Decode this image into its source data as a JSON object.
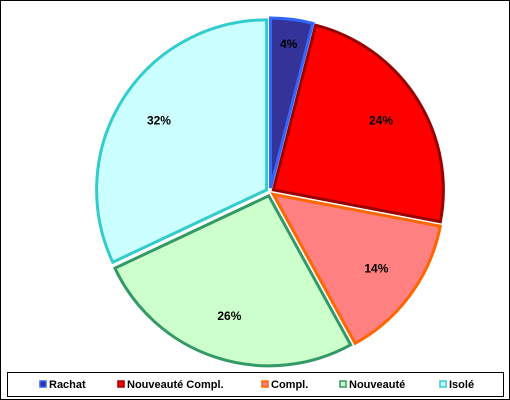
{
  "chart_data": {
    "type": "pie",
    "series": [
      {
        "name": "Rachat",
        "value": 4,
        "value_label": "4%",
        "color": "#333399",
        "edge": "#3366ff"
      },
      {
        "name": "Nouveauté Compl.",
        "value": 24,
        "value_label": "24%",
        "color": "#ff0000",
        "edge": "#990000"
      },
      {
        "name": "Compl.",
        "value": 14,
        "value_label": "14%",
        "color": "#ff8080",
        "edge": "#ff6600"
      },
      {
        "name": "Nouveauté",
        "value": 26,
        "value_label": "26%",
        "color": "#ccffcc",
        "edge": "#339966"
      },
      {
        "name": "Isolé",
        "value": 32,
        "value_label": "32%",
        "color": "#ccffff",
        "edge": "#33cccc"
      }
    ],
    "legend": "bottom"
  }
}
